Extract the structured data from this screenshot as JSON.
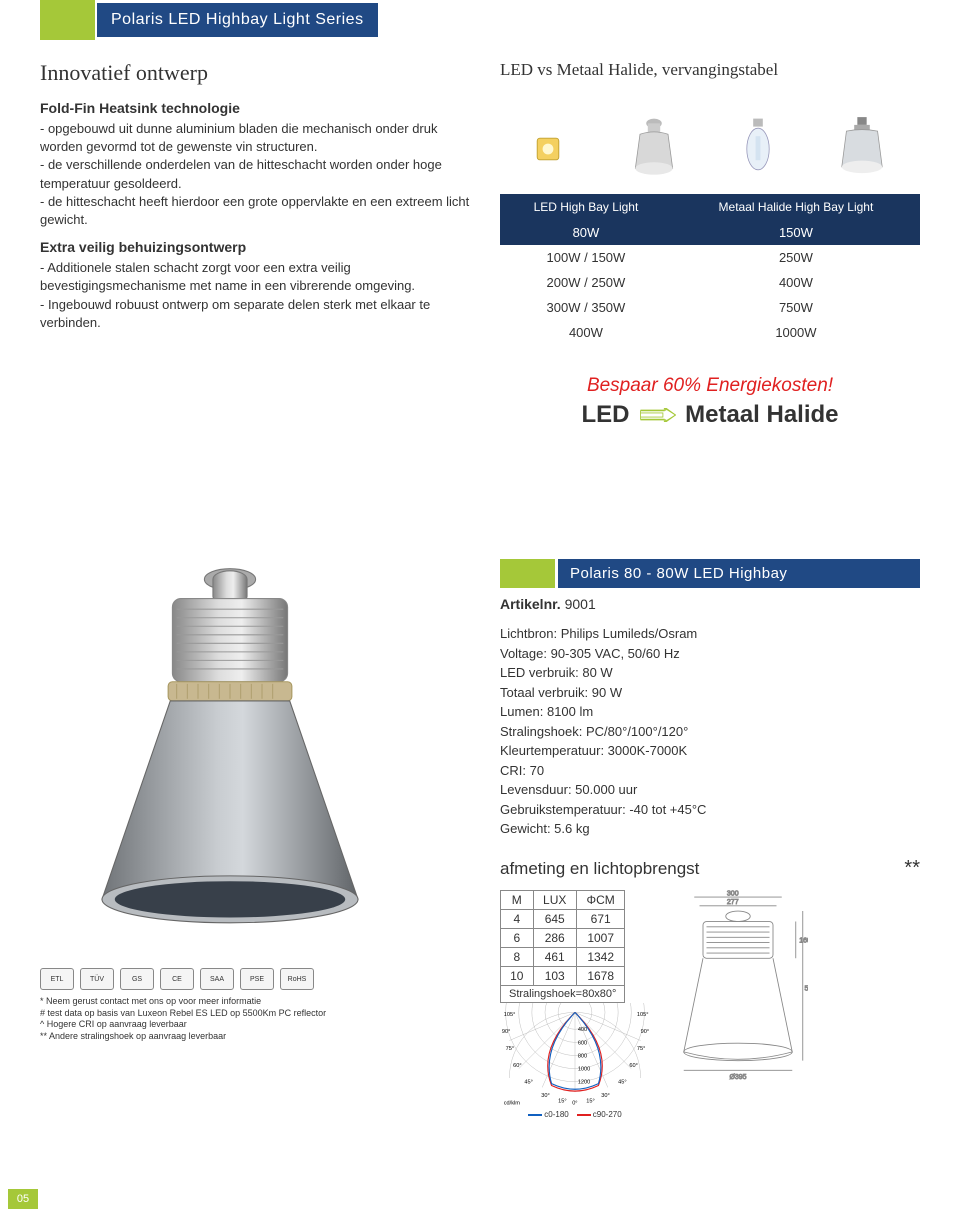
{
  "header": {
    "title": "Polaris LED Highbay Light Series"
  },
  "intro": {
    "subtitle": "Innovatief ontwerp",
    "feat1_head": "Fold-Fin Heatsink technologie",
    "feat1_body": "- opgebouwd uit dunne aluminium bladen die mechanisch onder druk worden gevormd tot de gewenste vin structuren.\n- de verschillende onderdelen van de hitteschacht worden onder hoge temperatuur gesoldeerd.\n- de hitteschacht heeft hierdoor een grote oppervlakte en een extreem licht gewicht.",
    "feat2_head": "Extra veilig behuizingsontwerp",
    "feat2_body": "- Additionele stalen schacht zorgt voor een extra veilig bevestigingsmechanisme met name in een vibrerende omgeving.\n- Ingebouwd robuust ontwerp om separate delen sterk met elkaar te verbinden."
  },
  "vs": {
    "title": "LED vs Metaal Halide, vervangingstabel",
    "col1_head": "LED High Bay Light",
    "col2_head": "Metaal Halide High Bay Light",
    "rows": [
      {
        "led": "80W",
        "mh": "150W",
        "dark": true
      },
      {
        "led": "100W / 150W",
        "mh": "250W",
        "dark": false
      },
      {
        "led": "200W / 250W",
        "mh": "400W",
        "dark": false
      },
      {
        "led": "300W / 350W",
        "mh": "750W",
        "dark": false
      },
      {
        "led": "400W",
        "mh": "1000W",
        "dark": false
      }
    ]
  },
  "savings": {
    "line1": "Bespaar 60% Energiekosten!",
    "led": "LED",
    "mh": "Metaal Halide"
  },
  "product": {
    "title": "Polaris 80 - 80W LED Highbay",
    "artikel_label": "Artikelnr.",
    "artikel_value": "9001",
    "specs": [
      "Lichtbron: Philips Lumileds/Osram",
      "Voltage: 90-305 VAC, 50/60 Hz",
      "LED verbruik: 80 W",
      "Totaal verbruik: 90 W",
      "Lumen: 8100 lm",
      "Stralingshoek: PC/80°/100°/120°",
      "Kleurtemperatuur: 3000K-7000K",
      "CRI: 70",
      "Levensduur: 50.000 uur",
      "Gebruikstemperatuur: -40 tot +45°C",
      "Gewicht: 5.6 kg"
    ]
  },
  "dimensions": {
    "heading": "afmeting en lichtopbrengst",
    "stars": "**",
    "cols": {
      "m": "M",
      "lux": "LUX",
      "cm": "ΦCM"
    },
    "rows": [
      {
        "m": "4",
        "lux": "645",
        "cm": "671"
      },
      {
        "m": "6",
        "lux": "286",
        "cm": "1007"
      },
      {
        "m": "8",
        "lux": "461",
        "cm": "1342"
      },
      {
        "m": "10",
        "lux": "103",
        "cm": "1678"
      }
    ],
    "footer": "Stralingshoek=80x80°",
    "polar": {
      "angles": [
        "105°",
        "90°",
        "75°",
        "60°",
        "45°",
        "30°",
        "15°",
        "0°"
      ],
      "rings": [
        "400",
        "600",
        "800",
        "1000",
        "1200"
      ],
      "unit": "cd/klm",
      "legend_c0": "c0-180",
      "legend_c90": "c90-270"
    },
    "drawing": {
      "w_top": "300",
      "w_in": "277",
      "h1": "160",
      "h_total": "561",
      "dia": "Ø395"
    }
  },
  "certs": [
    "ETL",
    "TÜV",
    "GS",
    "CE",
    "SAA",
    "PSE",
    "RoHS"
  ],
  "footnotes": [
    "* Neem gerust contact met ons op voor meer informatie",
    "# test data op basis van Luxeon Rebel ES LED op 5500Km PC reflector",
    "^ Hogere CRI op aanvraag leverbaar",
    "** Andere stralingshoek op aanvraag leverbaar"
  ],
  "page_number": "05",
  "colors": {
    "brand_green": "#a5c839",
    "brand_blue": "#204984",
    "table_dark": "#1a355e",
    "accent_red": "#e02020"
  }
}
